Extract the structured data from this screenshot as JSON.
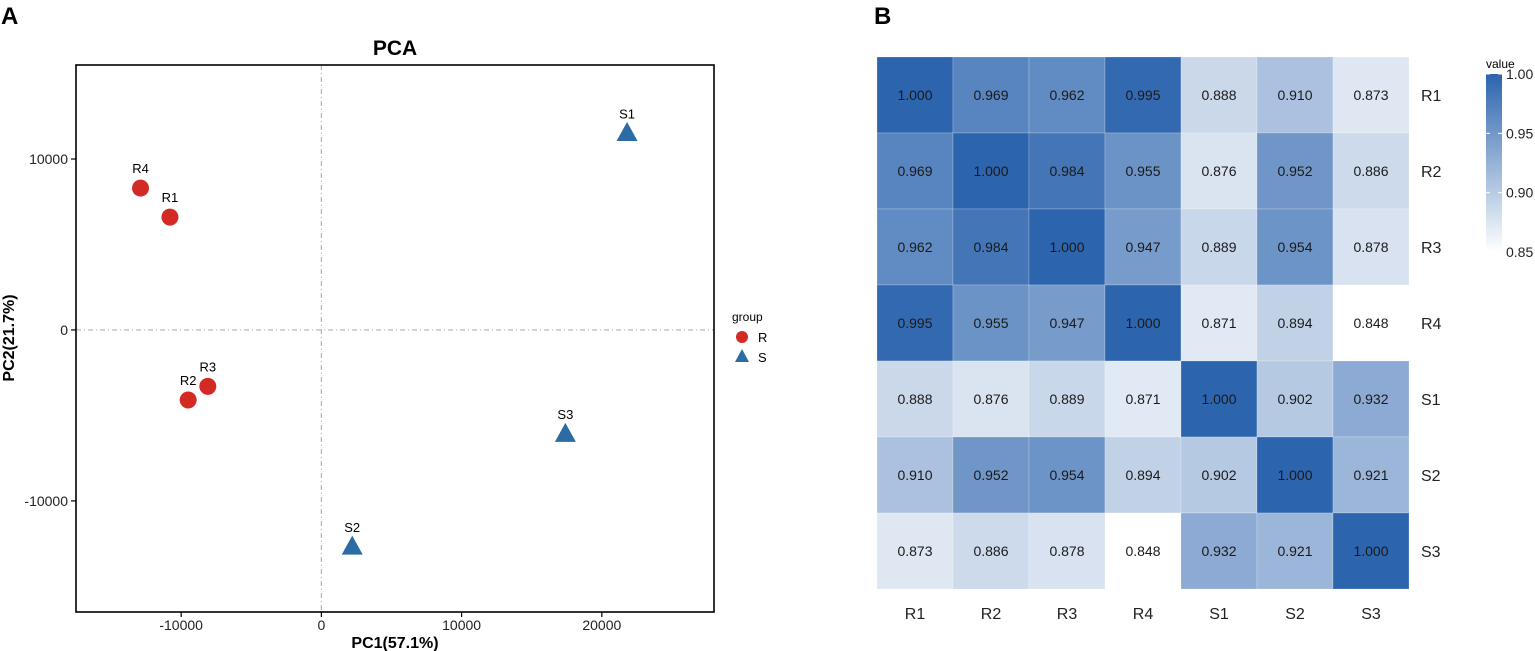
{
  "panels": {
    "a_label": "A",
    "b_label": "B"
  },
  "colors": {
    "R": "#d42a26",
    "S": "#2b6ca5",
    "heat_low": "#ffffff",
    "heat_high": "#2c64ae",
    "text": "#1a1a1a"
  },
  "chart_data": [
    {
      "type": "scatter",
      "title": "PCA",
      "xlabel": "PC1(57.1%)",
      "ylabel": "PC2(21.7%)",
      "xlim": [
        -17500,
        28000
      ],
      "ylim": [
        -16500,
        15500
      ],
      "xticks": [
        -10000,
        0,
        10000,
        20000
      ],
      "yticks": [
        -10000,
        0,
        10000
      ],
      "xtick_labels": [
        "-10000",
        "0",
        "10000",
        "20000"
      ],
      "ytick_labels": [
        "-10000",
        "0",
        "10000"
      ],
      "zero_lines": true,
      "legend": {
        "title": "group",
        "entries": [
          "R",
          "S"
        ],
        "position": "right"
      },
      "points": [
        {
          "label": "R1",
          "group": "R",
          "x": -10800,
          "y": 6600
        },
        {
          "label": "R2",
          "group": "R",
          "x": -9500,
          "y": -4100
        },
        {
          "label": "R3",
          "group": "R",
          "x": -8100,
          "y": -3300
        },
        {
          "label": "R4",
          "group": "R",
          "x": -12900,
          "y": 8300
        },
        {
          "label": "S1",
          "group": "S",
          "x": 21800,
          "y": 11500
        },
        {
          "label": "S2",
          "group": "S",
          "x": 2200,
          "y": -12700
        },
        {
          "label": "S3",
          "group": "S",
          "x": 17400,
          "y": -6100
        }
      ]
    },
    {
      "type": "heatmap",
      "rows": [
        "R1",
        "R2",
        "R3",
        "R4",
        "S1",
        "S2",
        "S3"
      ],
      "columns": [
        "R1",
        "R2",
        "R3",
        "R4",
        "S1",
        "S2",
        "S3"
      ],
      "values": [
        [
          1.0,
          0.969,
          0.962,
          0.995,
          0.888,
          0.91,
          0.873
        ],
        [
          0.969,
          1.0,
          0.984,
          0.955,
          0.876,
          0.952,
          0.886
        ],
        [
          0.962,
          0.984,
          1.0,
          0.947,
          0.889,
          0.954,
          0.878
        ],
        [
          0.995,
          0.955,
          0.947,
          1.0,
          0.871,
          0.894,
          0.848
        ],
        [
          0.888,
          0.876,
          0.889,
          0.871,
          1.0,
          0.902,
          0.932
        ],
        [
          0.91,
          0.952,
          0.954,
          0.894,
          0.902,
          1.0,
          0.921
        ],
        [
          0.873,
          0.886,
          0.878,
          0.848,
          0.932,
          0.921,
          1.0
        ]
      ],
      "value_labels": [
        [
          "1.000",
          "0.969",
          "0.962",
          "0.995",
          "0.888",
          "0.910",
          "0.873"
        ],
        [
          "0.969",
          "1.000",
          "0.984",
          "0.955",
          "0.876",
          "0.952",
          "0.886"
        ],
        [
          "0.962",
          "0.984",
          "1.000",
          "0.947",
          "0.889",
          "0.954",
          "0.878"
        ],
        [
          "0.995",
          "0.955",
          "0.947",
          "1.000",
          "0.871",
          "0.894",
          "0.848"
        ],
        [
          "0.888",
          "0.876",
          "0.889",
          "0.871",
          "1.000",
          "0.902",
          "0.932"
        ],
        [
          "0.910",
          "0.952",
          "0.954",
          "0.894",
          "0.902",
          "1.000",
          "0.921"
        ],
        [
          "0.873",
          "0.886",
          "0.878",
          "0.848",
          "0.932",
          "0.921",
          "1.000"
        ]
      ],
      "color_range": [
        0.85,
        1.0
      ],
      "colorbar": {
        "title": "value",
        "ticks": [
          1.0,
          0.95,
          0.9,
          0.85
        ],
        "tick_labels": [
          "1.00",
          "0.95",
          "0.90",
          "0.85"
        ]
      }
    }
  ]
}
